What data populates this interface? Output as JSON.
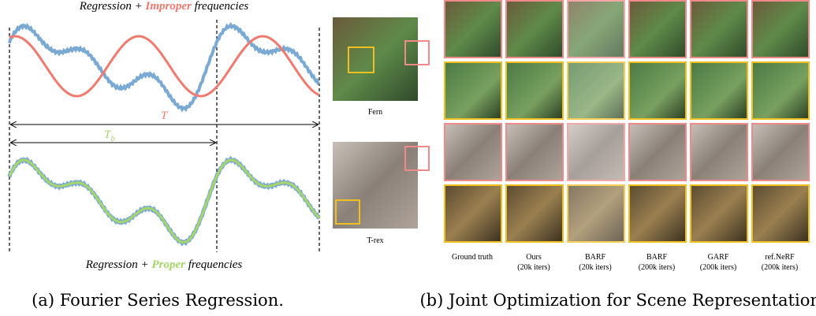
{
  "panel_a": {
    "top_caption": {
      "prefix": "Regression +",
      "highlight": "Improper",
      "suffix": "frequencies"
    },
    "period_label": "T",
    "base_period_label": {
      "main": "T",
      "sub": "b"
    },
    "bottom_caption": {
      "prefix": "Regression +",
      "highlight": "Proper",
      "suffix": "frequencies"
    },
    "caption": "(a) Fourier Series Regression."
  },
  "panel_b": {
    "scenes": [
      "Fern",
      "T-rex"
    ],
    "columns": [
      {
        "name": "Ground truth",
        "detail": null
      },
      {
        "name": "Ours",
        "detail": "(20k iters)"
      },
      {
        "name": "BARF",
        "detail": "(20k iters)"
      },
      {
        "name": "BARF",
        "detail": "(200k iters)"
      },
      {
        "name": "GARF",
        "detail": "(200k iters)"
      },
      {
        "name": "ref.NeRF",
        "detail": "(200k iters)"
      }
    ],
    "caption": "(b) Joint Optimization for Scene Representation."
  }
}
